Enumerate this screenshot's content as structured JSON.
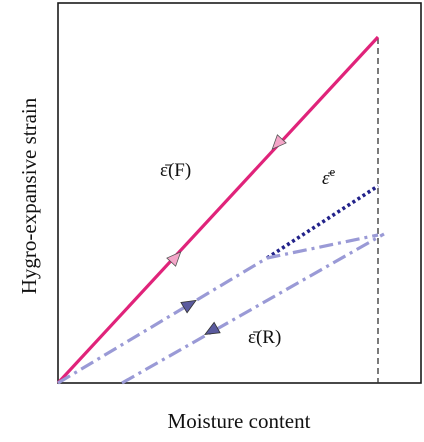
{
  "axes": {
    "xlabel": "Moisture content",
    "ylabel": "Hygro-expansive strain"
  },
  "labels": {
    "free": "ε̄(F)",
    "restrained": "ε̄(R)",
    "elastic_base": "ε̄",
    "elastic_sup": "e"
  },
  "colors": {
    "free_line": "#e0237a",
    "restrained_line": "#9a9ad6",
    "elastic_line": "#22228a",
    "arrow_free": "#f4a6c8",
    "arrow_restrained": "#5a5a9e",
    "guide": "#333333"
  }
}
